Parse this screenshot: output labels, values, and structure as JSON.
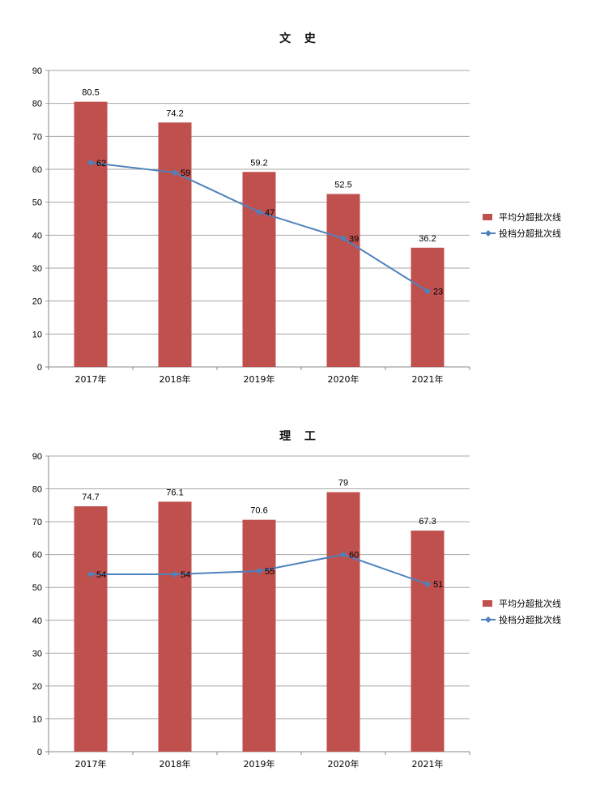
{
  "chart_data": [
    {
      "type": "bar",
      "title": "文 史",
      "categories": [
        "2017年",
        "2018年",
        "2019年",
        "2020年",
        "2021年"
      ],
      "ylim": [
        0,
        90
      ],
      "yticks": [
        "0",
        "10",
        "20",
        "30",
        "40",
        "50",
        "60",
        "70",
        "80",
        "90"
      ],
      "grid": true,
      "legend_position": "right",
      "series": [
        {
          "name": "平均分超批次线",
          "type": "bar",
          "color": "#c0504d",
          "values": [
            80.5,
            74.2,
            59.2,
            52.5,
            36.2
          ],
          "labels": [
            "80.5",
            "74.2",
            "59.2",
            "52.5",
            "36.2"
          ]
        },
        {
          "name": "投档分超批次线",
          "type": "line",
          "color": "#4f81bd",
          "values": [
            62,
            59,
            47,
            39,
            23
          ],
          "labels": [
            "62",
            "59",
            "47",
            "39",
            "23"
          ]
        }
      ]
    },
    {
      "type": "bar",
      "title": "理 工",
      "categories": [
        "2017年",
        "2018年",
        "2019年",
        "2020年",
        "2021年"
      ],
      "ylim": [
        0,
        90
      ],
      "yticks": [
        "0",
        "10",
        "20",
        "30",
        "40",
        "50",
        "60",
        "70",
        "80",
        "90"
      ],
      "grid": true,
      "legend_position": "right",
      "series": [
        {
          "name": "平均分超批次线",
          "type": "bar",
          "color": "#c0504d",
          "values": [
            74.7,
            76.1,
            70.6,
            79,
            67.3
          ],
          "labels": [
            "74.7",
            "76.1",
            "70.6",
            "79",
            "67.3"
          ]
        },
        {
          "name": "投档分超批次线",
          "type": "line",
          "color": "#4f81bd",
          "values": [
            54,
            54,
            55,
            60,
            51
          ],
          "labels": [
            "54",
            "54",
            "55",
            "60",
            "51"
          ]
        }
      ]
    }
  ]
}
